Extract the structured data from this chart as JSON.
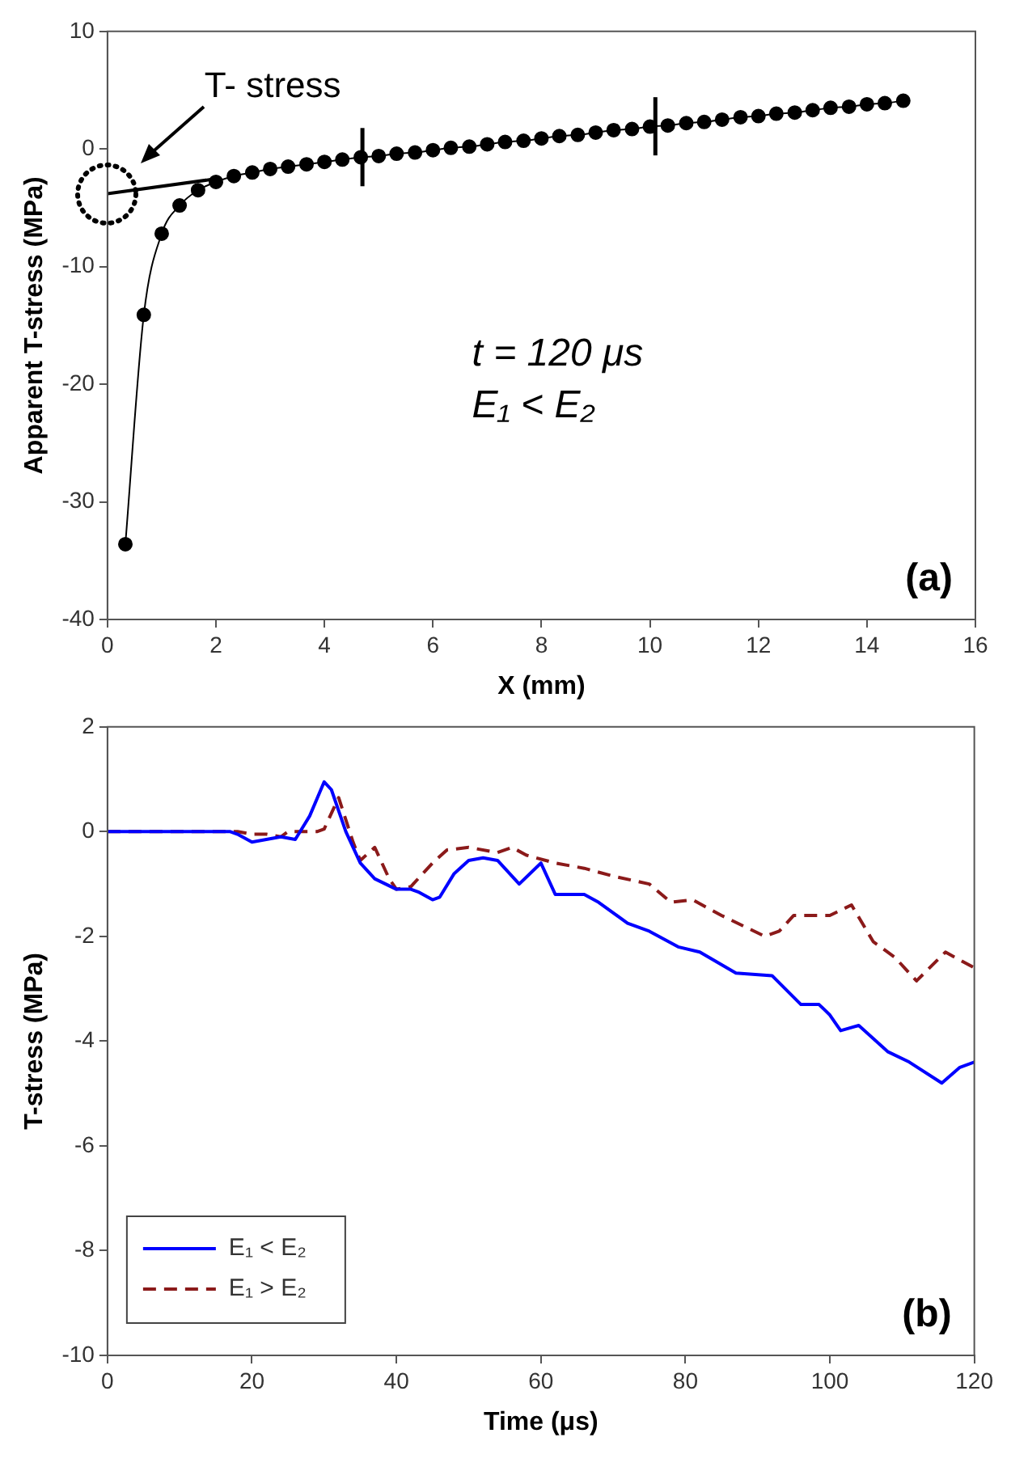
{
  "chart_data": [
    {
      "type": "line",
      "xlabel": "X (mm)",
      "ylabel": "Apparent T-stress (MPa)",
      "xlim": [
        0,
        16
      ],
      "xticks": [
        0,
        2,
        4,
        6,
        8,
        10,
        12,
        14,
        16
      ],
      "ylim": [
        -40,
        10
      ],
      "yticks": [
        -40,
        -30,
        -20,
        -10,
        0,
        10
      ],
      "grid": false,
      "legend": false,
      "series": [
        {
          "color": "#000000",
          "marker": "circle",
          "x": [
            0.33,
            0.67,
            1.0,
            1.33,
            1.67,
            2.0,
            2.33,
            2.67,
            3.0,
            3.33,
            3.67,
            4.0,
            4.33,
            4.67,
            5.0,
            5.33,
            5.67,
            6.0,
            6.33,
            6.67,
            7.0,
            7.33,
            7.67,
            8.0,
            8.33,
            8.67,
            9.0,
            9.33,
            9.67,
            10.0,
            10.33,
            10.67,
            11.0,
            11.33,
            11.67,
            12.0,
            12.33,
            12.67,
            13.0,
            13.33,
            13.67,
            14.0,
            14.33,
            14.67
          ],
          "values": [
            -33.6,
            -14.1,
            -7.2,
            -4.8,
            -3.5,
            -2.8,
            -2.3,
            -2.0,
            -1.7,
            -1.5,
            -1.3,
            -1.1,
            -0.9,
            -0.7,
            -0.6,
            -0.4,
            -0.3,
            -0.1,
            0.1,
            0.2,
            0.4,
            0.6,
            0.7,
            0.9,
            1.1,
            1.2,
            1.4,
            1.6,
            1.7,
            1.9,
            2.0,
            2.2,
            2.3,
            2.5,
            2.7,
            2.8,
            3.0,
            3.1,
            3.3,
            3.5,
            3.6,
            3.8,
            3.9,
            4.1
          ]
        },
        {
          "color": "#000000",
          "x": [
            0,
            1.9
          ],
          "values": [
            -3.8,
            -2.6
          ]
        }
      ],
      "ref_lines": [
        {
          "axis": "x",
          "value": 4.7
        },
        {
          "axis": "x",
          "value": 10.1
        }
      ],
      "annotations": [
        "T- stress",
        "t = 120 μs",
        "E₁ < E₂",
        "(a)"
      ]
    },
    {
      "type": "line",
      "xlabel": "Time (μs)",
      "ylabel": "T-stress (MPa)",
      "xlim": [
        0,
        120
      ],
      "xticks": [
        0,
        20,
        40,
        60,
        80,
        100,
        120
      ],
      "ylim": [
        -10,
        2
      ],
      "yticks": [
        -10,
        -8,
        -6,
        -4,
        -2,
        0,
        2
      ],
      "grid": false,
      "legend": "bottom left",
      "series": [
        {
          "name": "E₁ < E₂",
          "color": "#0000ff",
          "line_style": "solid",
          "x": [
            0,
            17,
            18,
            20,
            22,
            24,
            26,
            28,
            30,
            31,
            33,
            35,
            37,
            40,
            42,
            43,
            45,
            46,
            48,
            50,
            52,
            54,
            55,
            57,
            60,
            62,
            66,
            68,
            72,
            75,
            79,
            82,
            87,
            92,
            96,
            98.5,
            100,
            101.5,
            104,
            108,
            111,
            115.5,
            118,
            120
          ],
          "values": [
            0,
            0,
            -0.05,
            -0.2,
            -0.15,
            -0.1,
            -0.15,
            0.3,
            0.95,
            0.8,
            0,
            -0.6,
            -0.9,
            -1.1,
            -1.1,
            -1.15,
            -1.3,
            -1.25,
            -0.8,
            -0.55,
            -0.5,
            -0.55,
            -0.7,
            -1.0,
            -0.6,
            -1.2,
            -1.2,
            -1.35,
            -1.75,
            -1.9,
            -2.2,
            -2.3,
            -2.7,
            -2.75,
            -3.3,
            -3.3,
            -3.5,
            -3.8,
            -3.7,
            -4.2,
            -4.4,
            -4.8,
            -4.5,
            -4.4
          ]
        },
        {
          "name": "E₁ > E₂",
          "color": "#8b1a1a",
          "line_style": "dashed",
          "x": [
            0,
            18,
            20,
            22,
            24,
            25,
            29,
            30,
            32,
            34,
            35,
            37,
            39,
            40,
            42,
            45,
            47,
            50,
            54,
            56,
            58,
            62,
            66,
            70,
            75,
            78,
            81,
            85,
            91,
            93,
            95,
            100,
            103,
            106,
            109,
            112,
            116,
            120
          ],
          "values": [
            0,
            0,
            -0.05,
            -0.05,
            -0.1,
            0,
            0,
            0.05,
            0.65,
            -0.2,
            -0.55,
            -0.3,
            -0.9,
            -1.1,
            -1.05,
            -0.6,
            -0.35,
            -0.3,
            -0.4,
            -0.3,
            -0.45,
            -0.6,
            -0.7,
            -0.85,
            -1.0,
            -1.35,
            -1.3,
            -1.6,
            -2.0,
            -1.9,
            -1.6,
            -1.6,
            -1.4,
            -2.1,
            -2.4,
            -2.85,
            -2.3,
            -2.6
          ]
        }
      ],
      "annotations": [
        "(b)"
      ]
    }
  ]
}
